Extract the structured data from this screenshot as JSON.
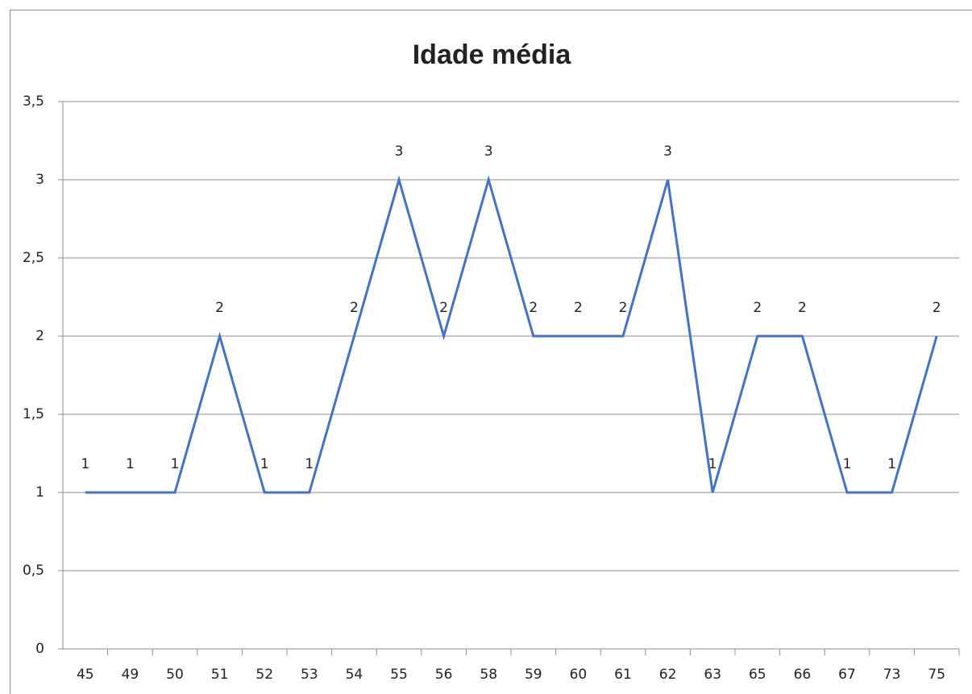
{
  "chart_data": {
    "type": "line",
    "title": "Idade média",
    "categories": [
      "45",
      "49",
      "50",
      "51",
      "52",
      "53",
      "54",
      "55",
      "56",
      "58",
      "59",
      "60",
      "61",
      "62",
      "63",
      "65",
      "66",
      "67",
      "73",
      "75"
    ],
    "series": [
      {
        "name": "Idade média",
        "color": "#4472c4",
        "values": [
          1,
          1,
          1,
          2,
          1,
          1,
          2,
          3,
          2,
          3,
          2,
          2,
          2,
          3,
          1,
          2,
          2,
          1,
          1,
          2
        ]
      }
    ],
    "ylim": [
      0,
      3.5
    ],
    "yticks": [
      0,
      {
        "value": 0.5,
        "label": "0,5"
      },
      1,
      {
        "value": 1.5,
        "label": "1,5"
      },
      2,
      {
        "value": 2.5,
        "label": "2,5"
      },
      3,
      {
        "value": 3.5,
        "label": "3,5"
      }
    ],
    "grid": true
  }
}
